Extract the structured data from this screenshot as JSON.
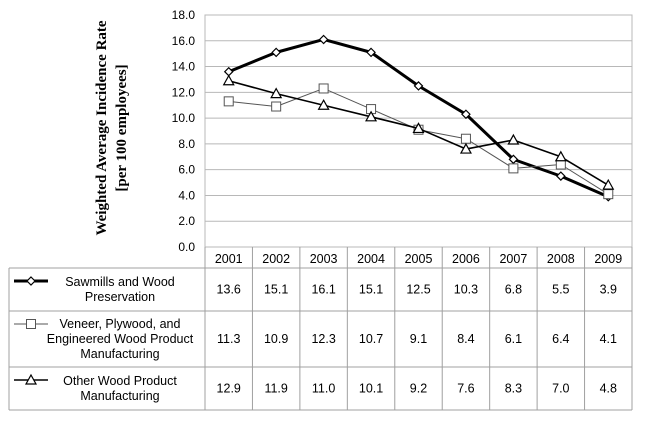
{
  "chart_data": {
    "type": "line",
    "ylabel_line1": "Weighted Average Incidence Rate",
    "ylabel_line2": "[per 100 employees]",
    "ylim": [
      0,
      18
    ],
    "ytick_step": 2,
    "ytick_labels": [
      "0.0",
      "2.0",
      "4.0",
      "6.0",
      "8.0",
      "10.0",
      "12.0",
      "14.0",
      "16.0",
      "18.0"
    ],
    "grid": true,
    "legend_placement": "data-table-left",
    "categories": [
      "2001",
      "2002",
      "2003",
      "2004",
      "2005",
      "2006",
      "2007",
      "2008",
      "2009"
    ],
    "series": [
      {
        "name": "Sawmills and Wood Preservation",
        "label_lines": [
          "Sawmills and Wood",
          "Preservation"
        ],
        "marker": "diamond",
        "line_style": "thick",
        "color": "#000000",
        "values": [
          13.6,
          15.1,
          16.1,
          15.1,
          12.5,
          10.3,
          6.8,
          5.5,
          3.9
        ],
        "value_labels": [
          "13.6",
          "15.1",
          "16.1",
          "15.1",
          "12.5",
          "10.3",
          "6.8",
          "5.5",
          "3.9"
        ]
      },
      {
        "name": "Veneer, Plywood, and Engineered Wood Product Manufacturing",
        "label_lines": [
          "Veneer, Plywood, and",
          "Engineered Wood Product",
          "Manufacturing"
        ],
        "marker": "square",
        "line_style": "thin",
        "color": "#555555",
        "values": [
          11.3,
          10.9,
          12.3,
          10.7,
          9.1,
          8.4,
          6.1,
          6.4,
          4.1
        ],
        "value_labels": [
          "11.3",
          "10.9",
          "12.3",
          "10.7",
          "9.1",
          "8.4",
          "6.1",
          "6.4",
          "4.1"
        ]
      },
      {
        "name": "Other Wood Product Manufacturing",
        "label_lines": [
          "Other Wood Product",
          "Manufacturing"
        ],
        "marker": "triangle",
        "line_style": "medium",
        "color": "#000000",
        "values": [
          12.9,
          11.9,
          11.0,
          10.1,
          9.2,
          7.6,
          8.3,
          7.0,
          4.8
        ],
        "value_labels": [
          "12.9",
          "11.9",
          "11.0",
          "10.1",
          "9.2",
          "7.6",
          "8.3",
          "7.0",
          "4.8"
        ]
      }
    ]
  }
}
